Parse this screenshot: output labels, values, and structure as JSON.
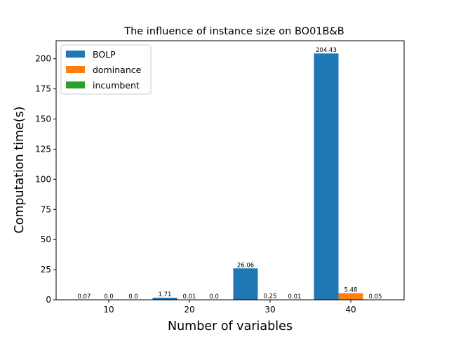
{
  "chart_data": {
    "type": "bar",
    "title": "The influence of instance size on BO01B&B",
    "xlabel": "Number of variables",
    "ylabel": "Computation time(s)",
    "categories": [
      "10",
      "20",
      "30",
      "40"
    ],
    "ylim": [
      0,
      215
    ],
    "yticks": [
      0,
      25,
      50,
      75,
      100,
      125,
      150,
      175,
      200
    ],
    "grid": false,
    "legend_position": "top-left",
    "series": [
      {
        "name": "BOLP",
        "color": "#1f77b4",
        "values": [
          0.07,
          1.71,
          26.06,
          204.43
        ],
        "labels": [
          "0.07",
          "1.71",
          "26.06",
          "204.43"
        ]
      },
      {
        "name": "dominance",
        "color": "#ff7f0e",
        "values": [
          0.0,
          0.01,
          0.25,
          5.48
        ],
        "labels": [
          "0.0",
          "0.01",
          "0.25",
          "5.48"
        ]
      },
      {
        "name": "incumbent",
        "color": "#2ca02c",
        "values": [
          0.0,
          0.0,
          0.01,
          0.05
        ],
        "labels": [
          "0.0",
          "0.0",
          "0.01",
          "0.05"
        ]
      }
    ]
  }
}
